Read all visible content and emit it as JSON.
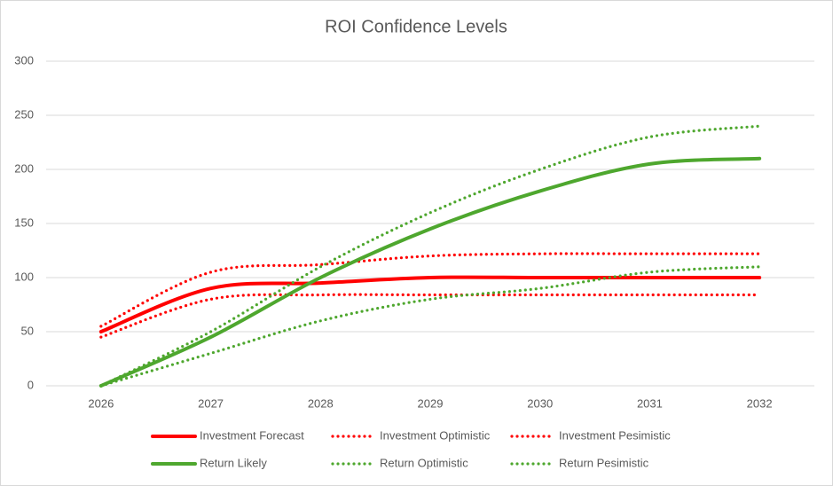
{
  "chart_data": {
    "type": "line",
    "title": "ROI Confidence Levels",
    "categories": [
      "2026",
      "2027",
      "2028",
      "2029",
      "2030",
      "2031",
      "2032"
    ],
    "series": [
      {
        "name": "Investment Forecast",
        "color": "#ff0000",
        "dash": "solid",
        "values": [
          50,
          90,
          95,
          100,
          100,
          100,
          100
        ]
      },
      {
        "name": "Investment Optimistic",
        "color": "#ff0000",
        "dash": "dotted",
        "values": [
          55,
          105,
          112,
          120,
          122,
          122,
          122
        ]
      },
      {
        "name": "Investment Pesimistic",
        "color": "#ff0000",
        "dash": "dotted",
        "values": [
          45,
          80,
          84,
          84,
          84,
          84,
          84
        ]
      },
      {
        "name": "Return Likely",
        "color": "#4ea72e",
        "dash": "solid",
        "values": [
          0,
          45,
          100,
          145,
          180,
          205,
          210
        ]
      },
      {
        "name": "Return Optimistic",
        "color": "#4ea72e",
        "dash": "dotted",
        "values": [
          0,
          50,
          110,
          160,
          200,
          230,
          240
        ]
      },
      {
        "name": "Return Pesimistic",
        "color": "#4ea72e",
        "dash": "dotted",
        "values": [
          0,
          30,
          60,
          80,
          90,
          105,
          110
        ]
      }
    ],
    "ylim": [
      0,
      300
    ],
    "yticks": [
      0,
      50,
      100,
      150,
      200,
      250,
      300
    ],
    "grid": true,
    "smooth": true,
    "legend": "bottom"
  }
}
